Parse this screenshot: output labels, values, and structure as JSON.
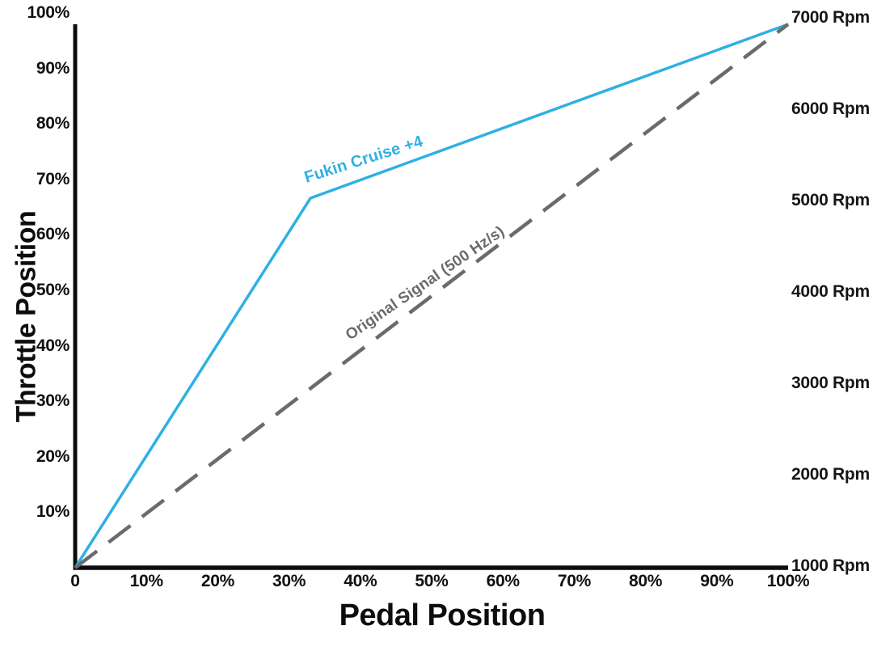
{
  "chart_data": {
    "type": "line",
    "title": "",
    "xlabel": "Pedal Position",
    "ylabel": "Throttle Position",
    "xlim": [
      0,
      100
    ],
    "ylim": [
      0,
      100
    ],
    "grid": false,
    "legend_position": "inline-rotated-labels",
    "x_ticks": [
      "0",
      "10%",
      "20%",
      "30%",
      "40%",
      "50%",
      "60%",
      "70%",
      "80%",
      "90%",
      "100%"
    ],
    "y_ticks": [
      "10%",
      "20%",
      "30%",
      "40%",
      "50%",
      "60%",
      "70%",
      "80%",
      "90%",
      "100%"
    ],
    "right_axis_labels": [
      "1000 Rpm",
      "2000 Rpm",
      "3000 Rpm",
      "4000 Rpm",
      "5000 Rpm",
      "6000 Rpm",
      "7000 Rpm"
    ],
    "series": [
      {
        "name": "Fukin Cruise +4",
        "color": "#2fb0e4",
        "style": "solid",
        "points": [
          [
            0,
            0
          ],
          [
            33,
            68
          ],
          [
            100,
            100
          ]
        ]
      },
      {
        "name": "Original Signal (500 Hz/s)",
        "color": "#6a6b6e",
        "style": "dashed",
        "points": [
          [
            0,
            0
          ],
          [
            100,
            100
          ]
        ]
      }
    ]
  },
  "colors": {
    "axis": "#0d0d0d",
    "cruise_line": "#2fb0e4",
    "original_line": "#6a6b6e",
    "tick_text": "#111111"
  },
  "labels": {
    "cruise": "Fukin Cruise +4",
    "original": "Original Signal (500 Hz/s)",
    "x_title": "Pedal Position",
    "y_title": "Throttle Position"
  }
}
